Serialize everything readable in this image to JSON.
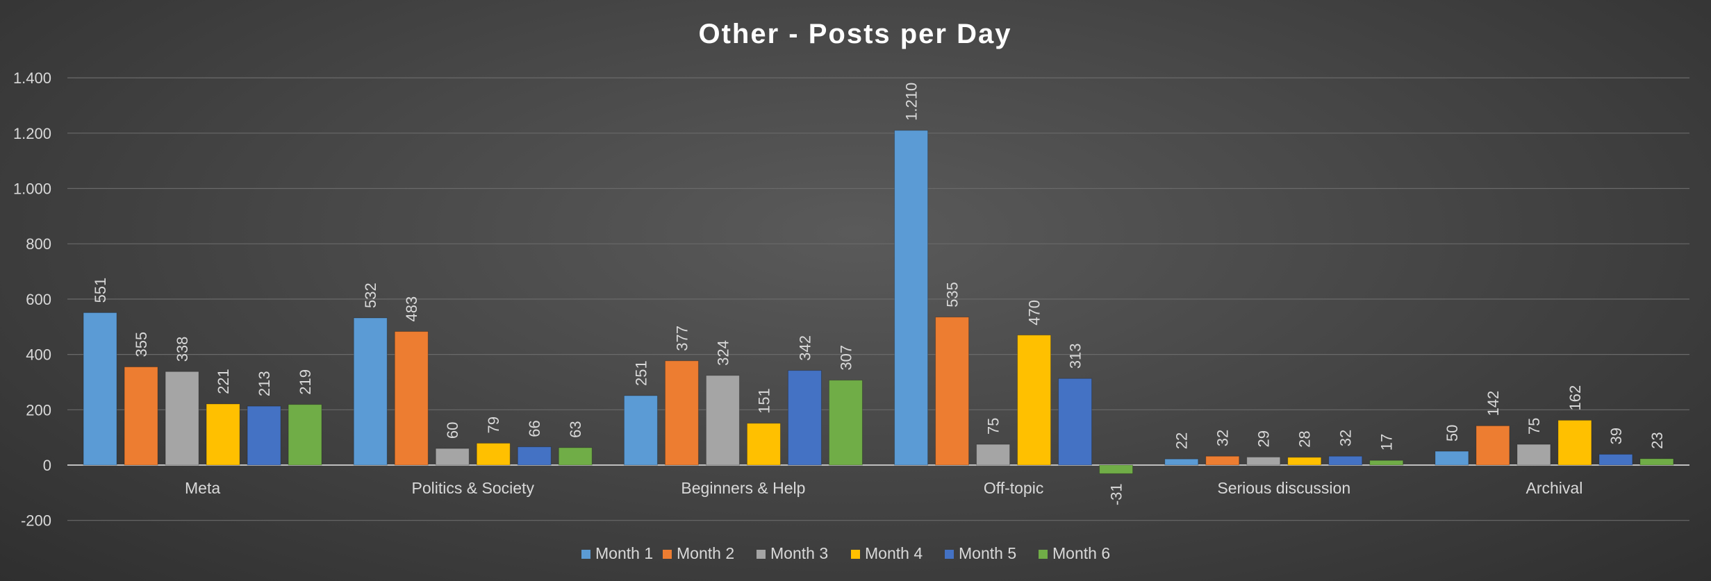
{
  "chart_data": {
    "type": "bar",
    "title": "Other - Posts per Day",
    "categories": [
      "Meta",
      "Politics & Society",
      "Beginners & Help",
      "Off-topic",
      "Serious discussion",
      "Archival"
    ],
    "series": [
      {
        "name": "Month 1",
        "color": "#5b9bd5",
        "values": [
          551,
          532,
          251,
          1210,
          22,
          50
        ],
        "labels": [
          "551",
          "532",
          "251",
          "1.210",
          "22",
          "50"
        ]
      },
      {
        "name": "Month 2",
        "color": "#ed7d31",
        "values": [
          355,
          483,
          377,
          535,
          32,
          142
        ],
        "labels": [
          "355",
          "483",
          "377",
          "535",
          "32",
          "142"
        ]
      },
      {
        "name": "Month 3",
        "color": "#a5a5a5",
        "values": [
          338,
          60,
          324,
          75,
          29,
          75
        ],
        "labels": [
          "338",
          "60",
          "324",
          "75",
          "29",
          "75"
        ]
      },
      {
        "name": "Month 4",
        "color": "#ffc000",
        "values": [
          221,
          79,
          151,
          470,
          28,
          162
        ],
        "labels": [
          "221",
          "79",
          "151",
          "470",
          "28",
          "162"
        ]
      },
      {
        "name": "Month 5",
        "color": "#4472c4",
        "values": [
          213,
          66,
          342,
          313,
          32,
          39
        ],
        "labels": [
          "213",
          "66",
          "342",
          "313",
          "32",
          "39"
        ]
      },
      {
        "name": "Month 6",
        "color": "#70ad47",
        "values": [
          219,
          63,
          307,
          -31,
          17,
          23
        ],
        "labels": [
          "219",
          "63",
          "307",
          "-31",
          "17",
          "23"
        ]
      }
    ],
    "ylim": [
      -200,
      1400
    ],
    "yticks": [
      -200,
      0,
      200,
      400,
      600,
      800,
      1000,
      1200,
      1400
    ],
    "ytick_labels": [
      "-200",
      "0",
      "200",
      "400",
      "600",
      "800",
      "1.000",
      "1.200",
      "1.400"
    ],
    "grid": true,
    "legend_position": "bottom"
  }
}
